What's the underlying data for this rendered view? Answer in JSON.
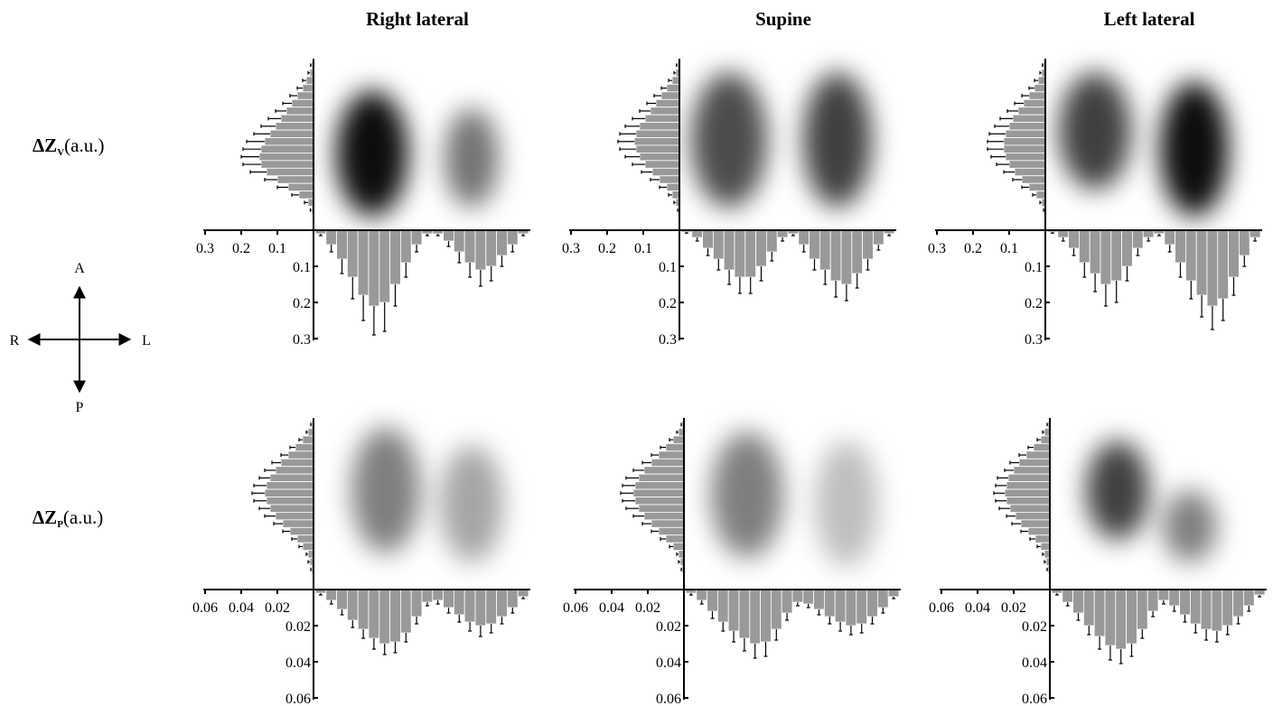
{
  "figure": {
    "row_labels": [
      {
        "main": "ΔZ",
        "sub": "V",
        "unit": "(a.u.)"
      },
      {
        "main": "ΔZ",
        "sub": "P",
        "unit": "(a.u.)"
      }
    ],
    "orientation": {
      "anterior": "A",
      "posterior": "P",
      "right": "R",
      "left": "L"
    }
  },
  "chart_data": [
    {
      "type": "profile",
      "title": "Right lateral",
      "color": "#999999",
      "xlim": [
        0,
        0.3
      ],
      "xticks": [
        0.1,
        0.2,
        0.3
      ],
      "ylim": [
        0,
        0.3
      ],
      "yticks": [
        0.1,
        0.2,
        0.3
      ],
      "vertical_profile": {
        "values": [
          0.005,
          0.01,
          0.02,
          0.03,
          0.045,
          0.06,
          0.075,
          0.09,
          0.105,
          0.12,
          0.135,
          0.145,
          0.15,
          0.145,
          0.13,
          0.1,
          0.07,
          0.04,
          0.015,
          0.005
        ],
        "errors": [
          0.003,
          0.005,
          0.01,
          0.015,
          0.02,
          0.025,
          0.03,
          0.035,
          0.04,
          0.045,
          0.05,
          0.05,
          0.05,
          0.05,
          0.045,
          0.035,
          0.03,
          0.02,
          0.01,
          0.004
        ]
      },
      "horizontal_profile": {
        "values": [
          0.01,
          0.04,
          0.08,
          0.13,
          0.18,
          0.21,
          0.2,
          0.15,
          0.09,
          0.04,
          0.01,
          0.01,
          0.03,
          0.06,
          0.09,
          0.11,
          0.1,
          0.07,
          0.04,
          0.01
        ],
        "errors": [
          0.005,
          0.02,
          0.04,
          0.06,
          0.07,
          0.08,
          0.08,
          0.06,
          0.04,
          0.02,
          0.005,
          0.005,
          0.015,
          0.03,
          0.04,
          0.045,
          0.04,
          0.03,
          0.02,
          0.005
        ]
      }
    },
    {
      "type": "profile",
      "title": "Supine",
      "color": "#999999",
      "xlim": [
        0,
        0.3
      ],
      "xticks": [
        0.1,
        0.2,
        0.3
      ],
      "ylim": [
        0,
        0.3
      ],
      "yticks": [
        0.1,
        0.2,
        0.3
      ],
      "vertical_profile": {
        "values": [
          0.005,
          0.01,
          0.02,
          0.035,
          0.05,
          0.065,
          0.08,
          0.095,
          0.11,
          0.12,
          0.125,
          0.12,
          0.11,
          0.095,
          0.075,
          0.055,
          0.035,
          0.02,
          0.01,
          0.003
        ],
        "errors": [
          0.003,
          0.005,
          0.01,
          0.015,
          0.02,
          0.025,
          0.03,
          0.035,
          0.04,
          0.045,
          0.045,
          0.045,
          0.04,
          0.035,
          0.03,
          0.025,
          0.02,
          0.01,
          0.005,
          0.002
        ]
      },
      "horizontal_profile": {
        "values": [
          0.005,
          0.02,
          0.05,
          0.08,
          0.11,
          0.13,
          0.13,
          0.1,
          0.06,
          0.02,
          0.01,
          0.04,
          0.08,
          0.11,
          0.14,
          0.15,
          0.12,
          0.08,
          0.04,
          0.01
        ],
        "errors": [
          0.003,
          0.01,
          0.02,
          0.03,
          0.04,
          0.045,
          0.045,
          0.04,
          0.025,
          0.01,
          0.005,
          0.02,
          0.03,
          0.04,
          0.045,
          0.045,
          0.04,
          0.03,
          0.015,
          0.005
        ]
      }
    },
    {
      "type": "profile",
      "title": "Left lateral",
      "color": "#999999",
      "xlim": [
        0,
        0.3
      ],
      "xticks": [
        0.1,
        0.2,
        0.3
      ],
      "ylim": [
        0,
        0.3
      ],
      "yticks": [
        0.1,
        0.2,
        0.3
      ],
      "vertical_profile": {
        "values": [
          0.005,
          0.01,
          0.02,
          0.03,
          0.045,
          0.06,
          0.075,
          0.09,
          0.1,
          0.11,
          0.115,
          0.115,
          0.11,
          0.1,
          0.085,
          0.065,
          0.045,
          0.025,
          0.01,
          0.003
        ],
        "errors": [
          0.003,
          0.005,
          0.01,
          0.015,
          0.02,
          0.025,
          0.03,
          0.035,
          0.04,
          0.045,
          0.045,
          0.045,
          0.04,
          0.035,
          0.03,
          0.025,
          0.02,
          0.01,
          0.005,
          0.002
        ]
      },
      "horizontal_profile": {
        "values": [
          0.005,
          0.02,
          0.05,
          0.09,
          0.12,
          0.15,
          0.14,
          0.1,
          0.05,
          0.02,
          0.01,
          0.04,
          0.09,
          0.14,
          0.18,
          0.21,
          0.19,
          0.13,
          0.07,
          0.02
        ],
        "errors": [
          0.003,
          0.01,
          0.02,
          0.04,
          0.05,
          0.06,
          0.06,
          0.04,
          0.02,
          0.01,
          0.005,
          0.02,
          0.04,
          0.05,
          0.06,
          0.065,
          0.06,
          0.05,
          0.03,
          0.01
        ]
      }
    },
    {
      "type": "profile",
      "color": "#999999",
      "xlim": [
        0,
        0.06
      ],
      "xticks": [
        0.02,
        0.04,
        0.06
      ],
      "ylim": [
        0,
        0.06
      ],
      "yticks": [
        0.02,
        0.04,
        0.06
      ],
      "vertical_profile": {
        "values": [
          0.001,
          0.003,
          0.006,
          0.01,
          0.014,
          0.018,
          0.021,
          0.024,
          0.026,
          0.027,
          0.026,
          0.024,
          0.021,
          0.017,
          0.013,
          0.009,
          0.006,
          0.003,
          0.002,
          0.001
        ],
        "errors": [
          0.0005,
          0.001,
          0.002,
          0.003,
          0.004,
          0.005,
          0.006,
          0.006,
          0.007,
          0.007,
          0.007,
          0.006,
          0.006,
          0.005,
          0.004,
          0.003,
          0.002,
          0.001,
          0.001,
          0.0005
        ]
      },
      "horizontal_profile": {
        "values": [
          0.002,
          0.006,
          0.011,
          0.017,
          0.022,
          0.027,
          0.03,
          0.029,
          0.024,
          0.015,
          0.007,
          0.006,
          0.01,
          0.014,
          0.018,
          0.02,
          0.019,
          0.015,
          0.01,
          0.004
        ],
        "errors": [
          0.001,
          0.002,
          0.003,
          0.004,
          0.005,
          0.006,
          0.006,
          0.006,
          0.005,
          0.004,
          0.002,
          0.002,
          0.003,
          0.004,
          0.005,
          0.006,
          0.005,
          0.004,
          0.003,
          0.001
        ]
      }
    },
    {
      "type": "profile",
      "color": "#999999",
      "xlim": [
        0,
        0.06
      ],
      "xticks": [
        0.02,
        0.04,
        0.06
      ],
      "ylim": [
        0,
        0.06
      ],
      "yticks": [
        0.02,
        0.04,
        0.06
      ],
      "vertical_profile": {
        "values": [
          0.001,
          0.003,
          0.006,
          0.01,
          0.014,
          0.018,
          0.022,
          0.025,
          0.027,
          0.028,
          0.027,
          0.025,
          0.022,
          0.018,
          0.014,
          0.01,
          0.006,
          0.003,
          0.002,
          0.001
        ],
        "errors": [
          0.0005,
          0.001,
          0.002,
          0.003,
          0.004,
          0.005,
          0.006,
          0.007,
          0.007,
          0.007,
          0.007,
          0.007,
          0.006,
          0.005,
          0.004,
          0.003,
          0.002,
          0.001,
          0.001,
          0.0005
        ]
      },
      "horizontal_profile": {
        "values": [
          0.002,
          0.006,
          0.012,
          0.018,
          0.023,
          0.027,
          0.03,
          0.029,
          0.022,
          0.013,
          0.007,
          0.008,
          0.011,
          0.015,
          0.018,
          0.02,
          0.019,
          0.015,
          0.01,
          0.004
        ],
        "errors": [
          0.001,
          0.002,
          0.004,
          0.005,
          0.006,
          0.007,
          0.008,
          0.008,
          0.006,
          0.004,
          0.002,
          0.002,
          0.003,
          0.004,
          0.005,
          0.005,
          0.005,
          0.004,
          0.003,
          0.001
        ]
      }
    },
    {
      "type": "profile",
      "color": "#999999",
      "xlim": [
        0,
        0.06
      ],
      "xticks": [
        0.02,
        0.04,
        0.06
      ],
      "ylim": [
        0,
        0.06
      ],
      "yticks": [
        0.02,
        0.04,
        0.06
      ],
      "vertical_profile": {
        "values": [
          0.001,
          0.003,
          0.005,
          0.009,
          0.013,
          0.017,
          0.02,
          0.023,
          0.024,
          0.025,
          0.024,
          0.022,
          0.019,
          0.016,
          0.012,
          0.008,
          0.005,
          0.003,
          0.002,
          0.001
        ],
        "errors": [
          0.0005,
          0.001,
          0.002,
          0.003,
          0.004,
          0.005,
          0.005,
          0.006,
          0.006,
          0.006,
          0.006,
          0.006,
          0.005,
          0.005,
          0.004,
          0.003,
          0.002,
          0.001,
          0.001,
          0.0005
        ]
      },
      "horizontal_profile": {
        "values": [
          0.002,
          0.007,
          0.013,
          0.02,
          0.026,
          0.031,
          0.033,
          0.03,
          0.022,
          0.012,
          0.006,
          0.009,
          0.014,
          0.019,
          0.022,
          0.023,
          0.02,
          0.015,
          0.009,
          0.003
        ],
        "errors": [
          0.001,
          0.002,
          0.004,
          0.005,
          0.007,
          0.008,
          0.008,
          0.007,
          0.005,
          0.003,
          0.002,
          0.003,
          0.004,
          0.005,
          0.006,
          0.006,
          0.005,
          0.004,
          0.003,
          0.001
        ]
      }
    }
  ]
}
